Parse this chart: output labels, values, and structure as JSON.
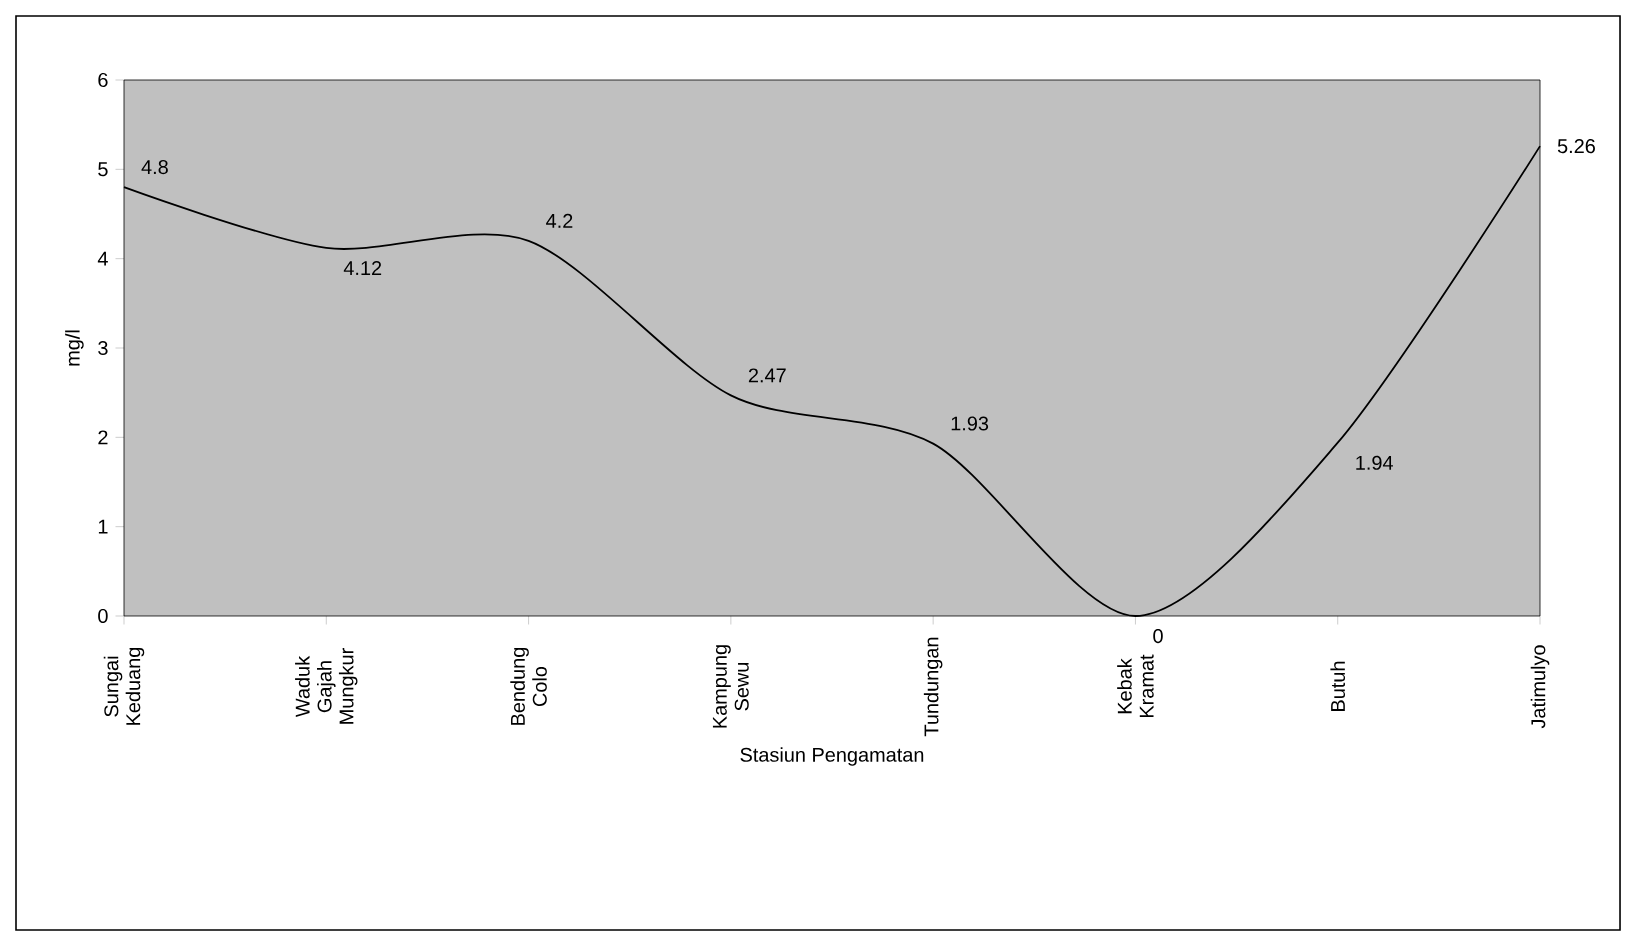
{
  "chart_data": {
    "type": "line",
    "categories": [
      "Sungai Keduang",
      "Waduk Gajah Mungkur",
      "Bendung Colo",
      "Kampung Sewu",
      "Tundungan",
      "Kebak Kramat",
      "Butuh",
      "Jatimulyo"
    ],
    "values": [
      4.8,
      4.12,
      4.2,
      2.47,
      1.93,
      0,
      1.94,
      5.26
    ],
    "color": "#000000",
    "xlabel": "Stasiun Pengamatan",
    "ylabel": "mg/l",
    "ylim": [
      0,
      6
    ],
    "yticks": [
      0,
      1,
      2,
      3,
      4,
      5,
      6
    ],
    "data_labels": true
  }
}
